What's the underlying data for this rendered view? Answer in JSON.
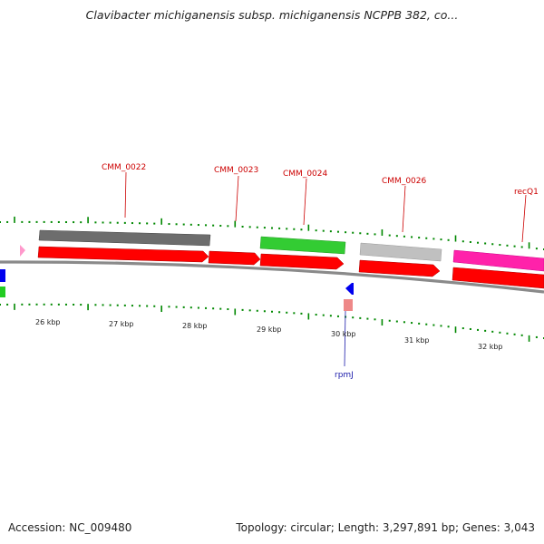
{
  "title": "Clavibacter michiganensis subsp. michiganensis NCPPB 382, co...",
  "footer": {
    "accession": "Accession: NC_009480",
    "summary": "Topology: circular; Length: 3,297,891 bp; Genes: 3,043"
  },
  "ticks": [
    "26 kbp",
    "27 kbp",
    "28 kbp",
    "29 kbp",
    "30 kbp",
    "31 kbp",
    "32 kbp"
  ],
  "gene_labels": [
    {
      "name": "CMM_0022",
      "strand": "plus"
    },
    {
      "name": "CMM_0023",
      "strand": "plus"
    },
    {
      "name": "CMM_0024",
      "strand": "plus"
    },
    {
      "name": "CMM_0026",
      "strand": "plus"
    },
    {
      "name": "recQ1",
      "strand": "plus"
    },
    {
      "name": "rpmJ",
      "strand": "minus"
    }
  ],
  "colors": {
    "cds": "#ff0000",
    "gene_grey": "#777777",
    "gene_green": "#33cc33",
    "gene_lightgrey": "#bbbbbb",
    "gene_magenta": "#ff22aa",
    "minus_blue": "#0000ee",
    "minus_pink": "#ee8888",
    "backbone": "#888888",
    "tick_green": "#008800"
  }
}
